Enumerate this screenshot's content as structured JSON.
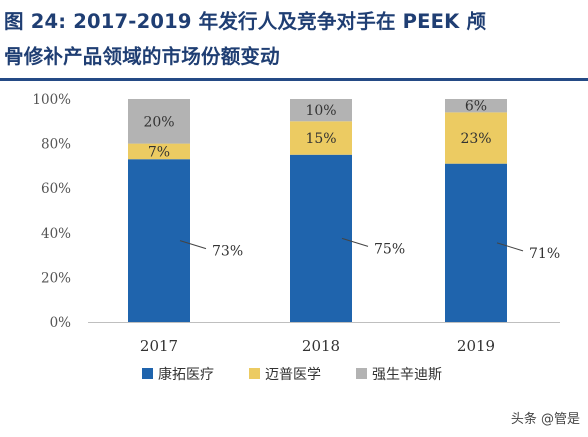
{
  "header": {
    "title_line1": "图 24:   2017-2019 年发行人及竞争对手在 PEEK 颅",
    "title_line2": "骨修补产品领域的市场份额变动"
  },
  "watermark": "头条 @管是",
  "chart_data": {
    "type": "bar",
    "stacked": true,
    "categories": [
      "2017",
      "2018",
      "2019"
    ],
    "series": [
      {
        "name": "康拓医疗",
        "color": "#1f64ad",
        "values": [
          73,
          75,
          71
        ]
      },
      {
        "name": "迈普医学",
        "color": "#eccb62",
        "values": [
          7,
          15,
          23
        ]
      },
      {
        "name": "强生辛迪斯",
        "color": "#b3b3b3",
        "values": [
          20,
          10,
          6
        ]
      }
    ],
    "data_labels": [
      [
        "73%",
        "75%",
        "71%"
      ],
      [
        "7%",
        "15%",
        "23%"
      ],
      [
        "20%",
        "10%",
        "6%"
      ]
    ],
    "yticks": [
      "0%",
      "20%",
      "40%",
      "60%",
      "80%",
      "100%"
    ],
    "ylim": [
      0,
      100
    ],
    "legend_position": "bottom",
    "grid": false
  }
}
